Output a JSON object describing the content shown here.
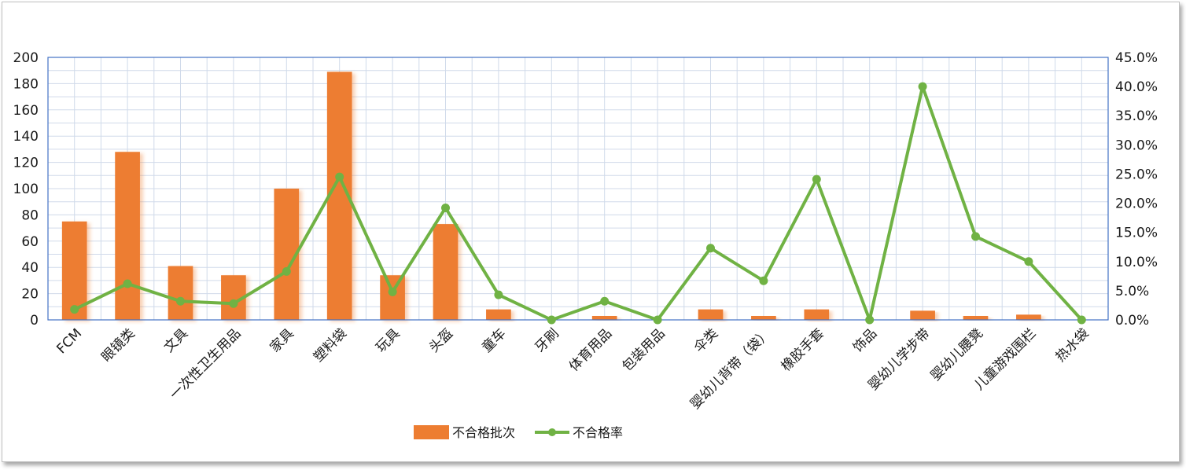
{
  "chart_data": {
    "type": "bar-line-combo",
    "title": "",
    "categories": [
      "FCM",
      "眼镜类",
      "文具",
      "一次性卫生用品",
      "家具",
      "塑料袋",
      "玩具",
      "头盔",
      "童车",
      "牙刷",
      "体育用品",
      "包装用品",
      "伞类",
      "婴幼儿背带（袋）",
      "橡胶手套",
      "饰品",
      "婴幼儿学步带",
      "婴幼儿腰凳",
      "儿童游戏围栏",
      "热水袋"
    ],
    "series": [
      {
        "name": "不合格批次",
        "type": "bar",
        "axis": "left",
        "color": "#ED7D31",
        "values": [
          75,
          128,
          41,
          34,
          100,
          189,
          34,
          73,
          8,
          0,
          3,
          0,
          8,
          3,
          8,
          0,
          7,
          3,
          4,
          0
        ]
      },
      {
        "name": "不合格率",
        "type": "line",
        "axis": "right",
        "color": "#70B244",
        "values": [
          1.8,
          6.2,
          3.2,
          2.8,
          8.3,
          24.5,
          4.8,
          19.2,
          4.3,
          0.0,
          3.2,
          0.0,
          12.3,
          6.7,
          24.1,
          0.0,
          40.0,
          14.3,
          10.0,
          0.0
        ]
      }
    ],
    "y_left": {
      "min": 0,
      "max": 200,
      "step": 20,
      "tick_labels": [
        "0",
        "20",
        "40",
        "60",
        "80",
        "100",
        "120",
        "140",
        "160",
        "180",
        "200"
      ]
    },
    "y_right": {
      "min": 0,
      "max": 45,
      "step": 5,
      "tick_labels": [
        "0.0%",
        "5.0%",
        "10.0%",
        "15.0%",
        "20.0%",
        "25.0%",
        "30.0%",
        "35.0%",
        "40.0%",
        "45.0%"
      ]
    },
    "grid": true,
    "legend_position": "bottom",
    "legend": [
      "不合格批次",
      "不合格率"
    ],
    "colors": {
      "bar": "#ED7D31",
      "line": "#70B244",
      "grid": "#D0DAEA",
      "axis": "#4472C4"
    }
  }
}
